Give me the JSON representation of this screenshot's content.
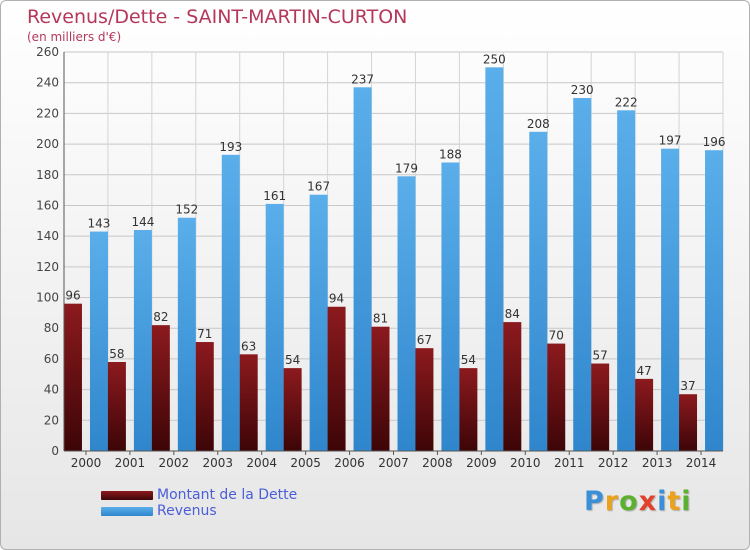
{
  "header": {
    "title": "Revenus/Dette - SAINT-MARTIN-CURTON",
    "subtitle": "(en milliers d'€)"
  },
  "legend": {
    "items": [
      {
        "label": "Montant de la Dette",
        "color": "#7a0f14"
      },
      {
        "label": "Revenus",
        "color": "#4aa3e6"
      }
    ]
  },
  "logo": {
    "text": "Proxiti",
    "letters": [
      {
        "ch": "P",
        "color": "#3a8fd8"
      },
      {
        "ch": "r",
        "color": "#e9a21a"
      },
      {
        "ch": "o",
        "color": "#5bb030"
      },
      {
        "ch": "x",
        "color": "#e2412b"
      },
      {
        "ch": "i",
        "color": "#3a8fd8"
      },
      {
        "ch": "t",
        "color": "#e9a21a"
      },
      {
        "ch": "i",
        "color": "#5bb030"
      }
    ]
  },
  "chart_data": {
    "type": "bar",
    "title": "Revenus/Dette - SAINT-MARTIN-CURTON",
    "subtitle": "(en milliers d'€)",
    "xlabel": "",
    "ylabel": "",
    "ylim": [
      0,
      260
    ],
    "yticks": [
      0,
      20,
      40,
      60,
      80,
      100,
      120,
      140,
      160,
      180,
      200,
      220,
      240,
      260
    ],
    "grid": true,
    "legend_position": "bottom-left",
    "categories": [
      "2000",
      "2001",
      "2002",
      "2003",
      "2004",
      "2005",
      "2006",
      "2007",
      "2008",
      "2009",
      "2010",
      "2011",
      "2012",
      "2013",
      "2014"
    ],
    "series": [
      {
        "name": "Montant de la Dette",
        "color": "#7a0f14",
        "values": [
          96,
          58,
          82,
          71,
          63,
          54,
          94,
          81,
          67,
          54,
          84,
          70,
          57,
          47,
          37
        ]
      },
      {
        "name": "Revenus",
        "color": "#4aa3e6",
        "values": [
          143,
          144,
          152,
          193,
          161,
          167,
          237,
          179,
          188,
          250,
          208,
          230,
          222,
          197,
          196
        ]
      }
    ]
  }
}
